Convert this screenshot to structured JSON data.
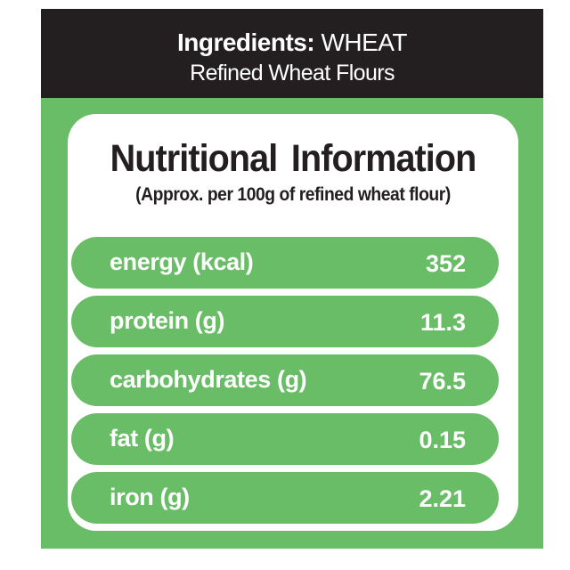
{
  "header": {
    "ingredients_label": "Ingredients:",
    "ingredients_value": "WHEAT",
    "subtitle": "Refined Wheat Flours"
  },
  "panel": {
    "title": "Nutritional Information",
    "subtitle": "(Approx. per 100g of refined wheat flour)",
    "rows": [
      {
        "label": "energy (kcal)",
        "value": "352"
      },
      {
        "label": "protein (g)",
        "value": "11.3"
      },
      {
        "label": "carbohydrates (g)",
        "value": "76.5"
      },
      {
        "label": "fat (g)",
        "value": "0.15"
      },
      {
        "label": "iron (g)",
        "value": "2.21"
      }
    ]
  }
}
